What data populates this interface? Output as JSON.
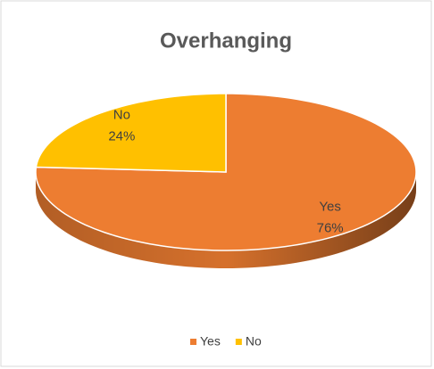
{
  "chart_data": {
    "type": "pie",
    "title": "Overhanging",
    "categories": [
      "Yes",
      "No"
    ],
    "values": [
      76,
      24
    ],
    "value_labels": [
      "76%",
      "24%"
    ],
    "colors": [
      "#ed7d31",
      "#ffc000"
    ],
    "legend": "bottom"
  }
}
